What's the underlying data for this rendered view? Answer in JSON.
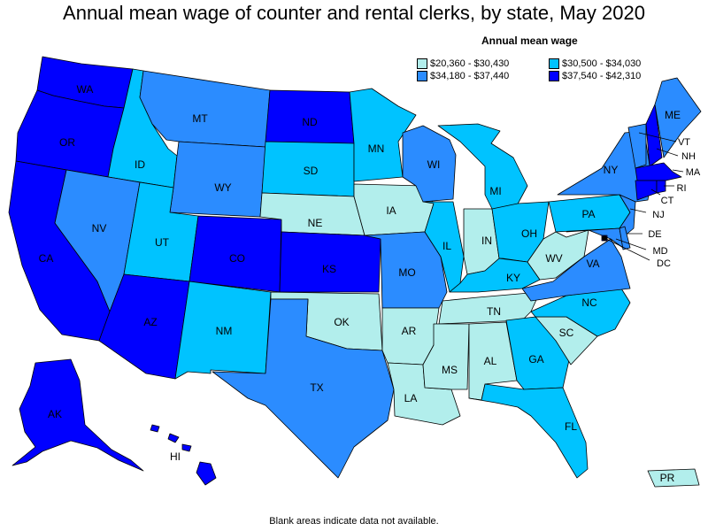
{
  "title": "Annual mean wage of counter and rental clerks, by state, May 2020",
  "legend": {
    "title": "Annual mean wage",
    "items": [
      {
        "label": "$20,360 - $30,430",
        "color": "#b2eeec"
      },
      {
        "label": "$30,500 - $34,030",
        "color": "#00c3ff"
      },
      {
        "label": "$34,180 - $37,440",
        "color": "#2b8cff"
      },
      {
        "label": "$37,540 - $42,310",
        "color": "#0000ff"
      }
    ]
  },
  "footnote": "Blank areas indicate data not available.",
  "states": {
    "WA": {
      "label": "WA",
      "tier": 3
    },
    "OR": {
      "label": "OR",
      "tier": 3
    },
    "CA": {
      "label": "CA",
      "tier": 3
    },
    "ID": {
      "label": "ID",
      "tier": 1
    },
    "NV": {
      "label": "NV",
      "tier": 2
    },
    "MT": {
      "label": "MT",
      "tier": 2
    },
    "WY": {
      "label": "WY",
      "tier": 2
    },
    "UT": {
      "label": "UT",
      "tier": 1
    },
    "AZ": {
      "label": "AZ",
      "tier": 3
    },
    "CO": {
      "label": "CO",
      "tier": 3
    },
    "NM": {
      "label": "NM",
      "tier": 1
    },
    "ND": {
      "label": "ND",
      "tier": 3
    },
    "SD": {
      "label": "SD",
      "tier": 1
    },
    "NE": {
      "label": "NE",
      "tier": 0
    },
    "KS": {
      "label": "KS",
      "tier": 3
    },
    "OK": {
      "label": "OK",
      "tier": 0
    },
    "TX": {
      "label": "TX",
      "tier": 2
    },
    "MN": {
      "label": "MN",
      "tier": 1
    },
    "IA": {
      "label": "IA",
      "tier": 0
    },
    "MO": {
      "label": "MO",
      "tier": 2
    },
    "AR": {
      "label": "AR",
      "tier": 0
    },
    "LA": {
      "label": "LA",
      "tier": 0
    },
    "WI": {
      "label": "WI",
      "tier": 2
    },
    "IL": {
      "label": "IL",
      "tier": 1
    },
    "MI": {
      "label": "MI",
      "tier": 1
    },
    "IN": {
      "label": "IN",
      "tier": 0
    },
    "OH": {
      "label": "OH",
      "tier": 1
    },
    "KY": {
      "label": "KY",
      "tier": 1
    },
    "TN": {
      "label": "TN",
      "tier": 0
    },
    "MS": {
      "label": "MS",
      "tier": 0
    },
    "AL": {
      "label": "AL",
      "tier": 0
    },
    "GA": {
      "label": "GA",
      "tier": 1
    },
    "FL": {
      "label": "FL",
      "tier": 1
    },
    "SC": {
      "label": "SC",
      "tier": 0
    },
    "NC": {
      "label": "NC",
      "tier": 1
    },
    "VA": {
      "label": "VA",
      "tier": 2
    },
    "WV": {
      "label": "WV",
      "tier": 0
    },
    "PA": {
      "label": "PA",
      "tier": 1
    },
    "NY": {
      "label": "NY",
      "tier": 2
    },
    "ME": {
      "label": "ME",
      "tier": 2
    },
    "VT": {
      "label": "VT",
      "tier": 2
    },
    "NH": {
      "label": "NH",
      "tier": 3
    },
    "MA": {
      "label": "MA",
      "tier": 3
    },
    "RI": {
      "label": "RI",
      "tier": 3
    },
    "CT": {
      "label": "CT",
      "tier": 3
    },
    "NJ": {
      "label": "NJ",
      "tier": 2
    },
    "DE": {
      "label": "DE",
      "tier": 2
    },
    "MD": {
      "label": "MD",
      "tier": 2
    },
    "DC": {
      "label": "DC",
      "tier": 3
    },
    "AK": {
      "label": "AK",
      "tier": 3
    },
    "HI": {
      "label": "HI",
      "tier": 3
    },
    "PR": {
      "label": "PR",
      "tier": 0
    }
  }
}
